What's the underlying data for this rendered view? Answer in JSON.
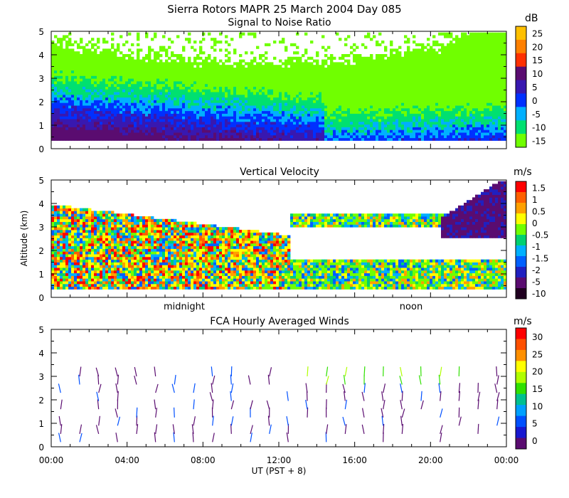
{
  "figure": {
    "title": "Sierra Rotors  MAPR 25 March 2004 Day 085"
  },
  "chart_data": [
    {
      "type": "heatmap",
      "title": "Signal to Noise Ratio",
      "ylabel": "",
      "ylim": [
        0,
        5
      ],
      "yticks": [
        "0",
        "1",
        "2",
        "3",
        "4",
        "5"
      ],
      "colorbar": {
        "unit": "dB",
        "labels": [
          "25",
          "20",
          "15",
          "10",
          "5",
          "0",
          "-5",
          "-10",
          "-15"
        ],
        "colors": [
          "#ffc000",
          "#ff8000",
          "#ff3000",
          "#5a0c70",
          "#3818b0",
          "#0030ff",
          "#00b0ff",
          "#00e070",
          "#70ff00"
        ]
      }
    },
    {
      "type": "heatmap",
      "title": "Vertical Velocity",
      "ylabel": "Altitude (km)",
      "ylim": [
        0,
        5
      ],
      "yticks": [
        "0",
        "1",
        "2",
        "3",
        "4",
        "5"
      ],
      "xmarks": [
        "midnight",
        "noon"
      ],
      "colorbar": {
        "unit": "m/s",
        "labels": [
          "1.5",
          "1",
          "0.5",
          "0",
          "-0.5",
          "-1",
          "-1.5",
          "-2",
          "-5",
          "-10"
        ],
        "colors": [
          "#ff0000",
          "#ff6000",
          "#ffa000",
          "#ffff00",
          "#70ff00",
          "#00d070",
          "#00b0ff",
          "#0060ff",
          "#2020c0",
          "#5a0c70",
          "#200020"
        ]
      }
    },
    {
      "type": "scatter",
      "title": "FCA Hourly Averaged Winds",
      "ylim": [
        0,
        5
      ],
      "yticks": [
        "0",
        "1",
        "2",
        "3",
        "4",
        "5"
      ],
      "xticks": [
        "00:00",
        "04:00",
        "08:00",
        "12:00",
        "16:00",
        "20:00",
        "00:00"
      ],
      "xlabel": "UT  (PST + 8)",
      "colorbar": {
        "unit": "m/s",
        "labels": [
          "30",
          "25",
          "20",
          "15",
          "10",
          "5",
          "0"
        ],
        "colors": [
          "#ff0000",
          "#ff5000",
          "#ff9000",
          "#ffff00",
          "#b0ff00",
          "#30e000",
          "#00c090",
          "#00a0ff",
          "#0050ff",
          "#1818d0",
          "#5a0c70"
        ]
      }
    }
  ]
}
